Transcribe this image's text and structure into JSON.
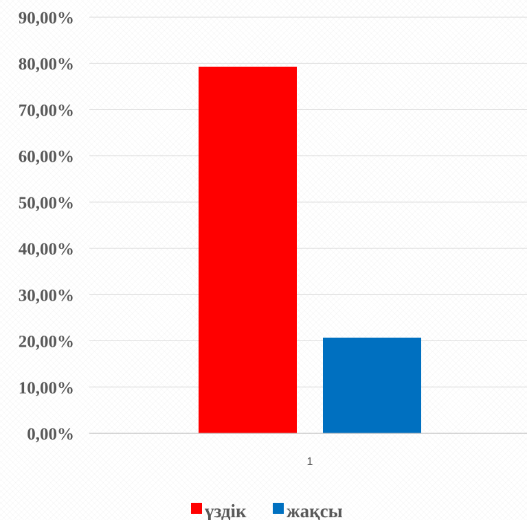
{
  "chart_data": {
    "type": "bar",
    "categories": [
      "1"
    ],
    "series": [
      {
        "name": "үздік",
        "values": [
          0.793
        ],
        "color": "#ff0000"
      },
      {
        "name": "жақсы",
        "values": [
          0.207
        ],
        "color": "#0070c0"
      }
    ],
    "ylim": [
      0,
      0.9
    ],
    "yticks": [
      "0,00%",
      "10,00%",
      "20,00%",
      "30,00%",
      "40,00%",
      "50,00%",
      "60,00%",
      "70,00%",
      "80,00%",
      "90,00%"
    ],
    "ytick_values": [
      0,
      0.1,
      0.2,
      0.3,
      0.4,
      0.5,
      0.6,
      0.7,
      0.8,
      0.9
    ],
    "grid": true,
    "legend_position": "bottom"
  }
}
